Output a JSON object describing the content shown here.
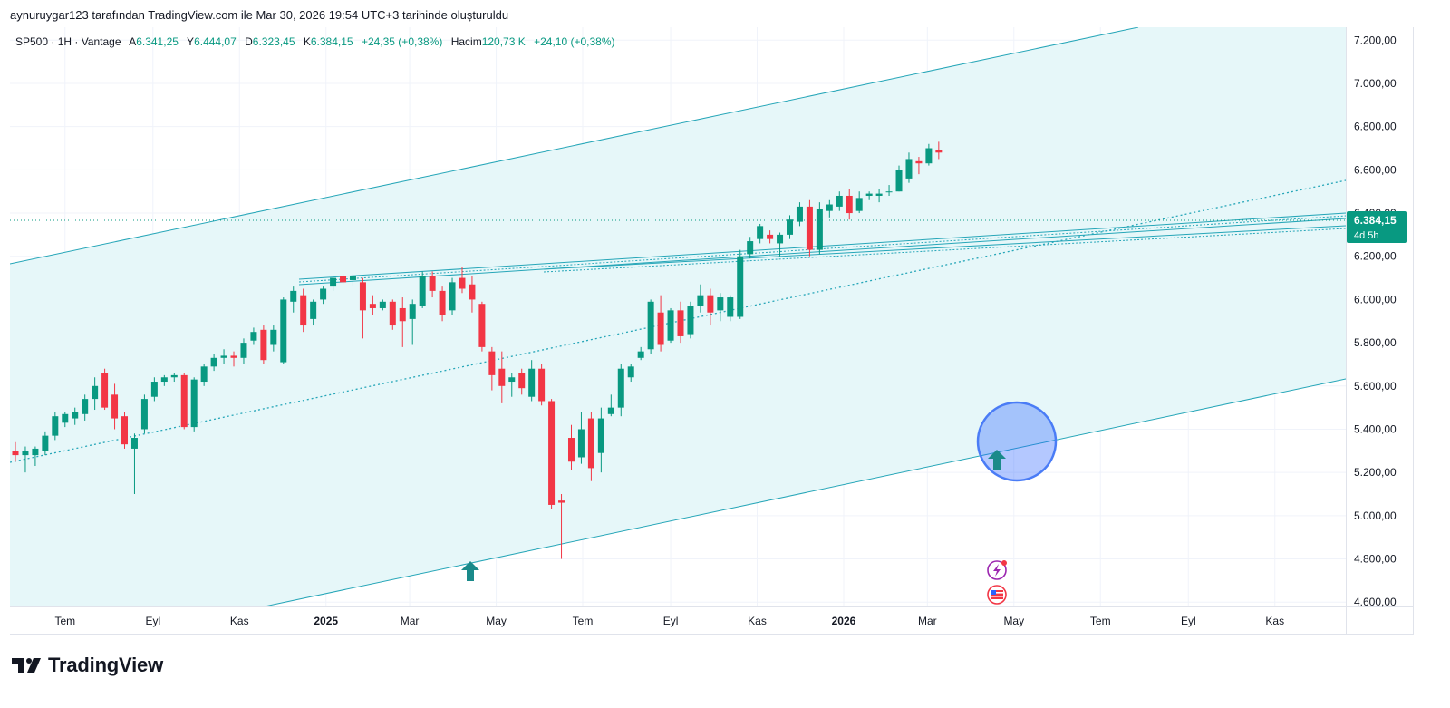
{
  "header": {
    "caption": "aynuruygar123 tarafından TradingView.com ile Mar 30, 2026 19:54 UTC+3 tarihinde oluşturuldu"
  },
  "legend": {
    "symbol": "SP500 · 1H · Vantage",
    "open_label": "A",
    "open_value": "6.341,25",
    "high_label": "Y",
    "high_value": "6.444,07",
    "low_label": "D",
    "low_value": "6.323,45",
    "close_label": "K",
    "close_value": "6.384,15",
    "change": "+24,35 (+0,38%)",
    "volume_label": "Hacim",
    "volume_value": "120,73 K",
    "volume_change": "+24,10 (+0,38%)"
  },
  "price_tag": {
    "value": "6.384,15",
    "countdown": "4d 5h"
  },
  "brand": {
    "name": "TradingView"
  },
  "colors": {
    "up": "#089981",
    "down": "#f23645",
    "channel": "#26a6b8",
    "fill": "#e6f7f9",
    "circle": "#2962ff"
  },
  "chart_data": {
    "type": "candlestick",
    "ylim": [
      4580,
      7260
    ],
    "y_ticks": [
      4600,
      4800,
      5000,
      5200,
      5400,
      5600,
      5800,
      6000,
      6200,
      6400,
      6600,
      6800,
      7000,
      7200
    ],
    "y_tick_labels": [
      "4.600,00",
      "4.800,00",
      "5.000,00",
      "5.200,00",
      "5.400,00",
      "5.600,00",
      "5.800,00",
      "6.000,00",
      "6.200,00",
      "6.400,00",
      "6.600,00",
      "6.800,00",
      "7.000,00",
      "7.200,00"
    ],
    "x_range": [
      "2024-05-27",
      "2026-12-21"
    ],
    "x_ticks": [
      {
        "date": "2024-07-01",
        "label": "Tem",
        "bold": false
      },
      {
        "date": "2024-09-01",
        "label": "Eyl",
        "bold": false
      },
      {
        "date": "2024-11-01",
        "label": "Kas",
        "bold": false
      },
      {
        "date": "2025-01-01",
        "label": "2025",
        "bold": true
      },
      {
        "date": "2025-03-01",
        "label": "Mar",
        "bold": false
      },
      {
        "date": "2025-05-01",
        "label": "May",
        "bold": false
      },
      {
        "date": "2025-07-01",
        "label": "Tem",
        "bold": false
      },
      {
        "date": "2025-09-01",
        "label": "Eyl",
        "bold": false
      },
      {
        "date": "2025-11-01",
        "label": "Kas",
        "bold": false
      },
      {
        "date": "2026-01-01",
        "label": "2026",
        "bold": true
      },
      {
        "date": "2026-03-01",
        "label": "Mar",
        "bold": false
      },
      {
        "date": "2026-05-01",
        "label": "May",
        "bold": false
      },
      {
        "date": "2026-07-01",
        "label": "Tem",
        "bold": false
      },
      {
        "date": "2026-09-01",
        "label": "Eyl",
        "bold": false
      },
      {
        "date": "2026-11-01",
        "label": "Kas",
        "bold": false
      }
    ],
    "candles": [
      {
        "d": "2024-05-27",
        "o": 5300,
        "h": 5340,
        "l": 5250,
        "c": 5280
      },
      {
        "d": "2024-06-03",
        "o": 5280,
        "h": 5320,
        "l": 5200,
        "c": 5300
      },
      {
        "d": "2024-06-10",
        "o": 5280,
        "h": 5320,
        "l": 5230,
        "c": 5310
      },
      {
        "d": "2024-06-17",
        "o": 5300,
        "h": 5390,
        "l": 5280,
        "c": 5370
      },
      {
        "d": "2024-06-24",
        "o": 5370,
        "h": 5480,
        "l": 5350,
        "c": 5460
      },
      {
        "d": "2024-07-01",
        "o": 5430,
        "h": 5480,
        "l": 5410,
        "c": 5470
      },
      {
        "d": "2024-07-08",
        "o": 5450,
        "h": 5500,
        "l": 5420,
        "c": 5480
      },
      {
        "d": "2024-07-15",
        "o": 5470,
        "h": 5560,
        "l": 5440,
        "c": 5540
      },
      {
        "d": "2024-07-22",
        "o": 5540,
        "h": 5640,
        "l": 5490,
        "c": 5600
      },
      {
        "d": "2024-07-29",
        "o": 5660,
        "h": 5680,
        "l": 5490,
        "c": 5500
      },
      {
        "d": "2024-08-05",
        "o": 5560,
        "h": 5610,
        "l": 5400,
        "c": 5450
      },
      {
        "d": "2024-08-12",
        "o": 5460,
        "h": 5480,
        "l": 5310,
        "c": 5330
      },
      {
        "d": "2024-08-19",
        "o": 5310,
        "h": 5380,
        "l": 5100,
        "c": 5360
      },
      {
        "d": "2024-08-26",
        "o": 5400,
        "h": 5560,
        "l": 5380,
        "c": 5540
      },
      {
        "d": "2024-09-02",
        "o": 5550,
        "h": 5640,
        "l": 5530,
        "c": 5620
      },
      {
        "d": "2024-09-09",
        "o": 5620,
        "h": 5650,
        "l": 5600,
        "c": 5640
      },
      {
        "d": "2024-09-16",
        "o": 5640,
        "h": 5660,
        "l": 5620,
        "c": 5650
      },
      {
        "d": "2024-09-23",
        "o": 5650,
        "h": 5660,
        "l": 5400,
        "c": 5410
      },
      {
        "d": "2024-09-30",
        "o": 5410,
        "h": 5640,
        "l": 5390,
        "c": 5630
      },
      {
        "d": "2024-10-07",
        "o": 5620,
        "h": 5700,
        "l": 5600,
        "c": 5690
      },
      {
        "d": "2024-10-14",
        "o": 5690,
        "h": 5750,
        "l": 5670,
        "c": 5730
      },
      {
        "d": "2024-10-21",
        "o": 5730,
        "h": 5770,
        "l": 5700,
        "c": 5740
      },
      {
        "d": "2024-10-28",
        "o": 5740,
        "h": 5760,
        "l": 5690,
        "c": 5730
      },
      {
        "d": "2024-11-04",
        "o": 5730,
        "h": 5820,
        "l": 5700,
        "c": 5800
      },
      {
        "d": "2024-11-11",
        "o": 5810,
        "h": 5870,
        "l": 5790,
        "c": 5850
      },
      {
        "d": "2024-11-18",
        "o": 5860,
        "h": 5880,
        "l": 5700,
        "c": 5720
      },
      {
        "d": "2024-11-25",
        "o": 5790,
        "h": 5880,
        "l": 5760,
        "c": 5860
      },
      {
        "d": "2024-12-02",
        "o": 5710,
        "h": 6010,
        "l": 5700,
        "c": 6000
      },
      {
        "d": "2024-12-09",
        "o": 5990,
        "h": 6060,
        "l": 5940,
        "c": 6040
      },
      {
        "d": "2024-12-16",
        "o": 6020,
        "h": 6050,
        "l": 5850,
        "c": 5880
      },
      {
        "d": "2024-12-23",
        "o": 5910,
        "h": 6000,
        "l": 5880,
        "c": 5990
      },
      {
        "d": "2024-12-30",
        "o": 6000,
        "h": 6060,
        "l": 5980,
        "c": 6050
      },
      {
        "d": "2025-01-06",
        "o": 6060,
        "h": 6100,
        "l": 6040,
        "c": 6100
      },
      {
        "d": "2025-01-13",
        "o": 6110,
        "h": 6120,
        "l": 6070,
        "c": 6080
      },
      {
        "d": "2025-01-20",
        "o": 6090,
        "h": 6120,
        "l": 6060,
        "c": 6110
      },
      {
        "d": "2025-01-27",
        "o": 6080,
        "h": 6100,
        "l": 5820,
        "c": 5950
      },
      {
        "d": "2025-02-03",
        "o": 5980,
        "h": 6020,
        "l": 5930,
        "c": 5960
      },
      {
        "d": "2025-02-10",
        "o": 5960,
        "h": 6000,
        "l": 5950,
        "c": 5990
      },
      {
        "d": "2025-02-17",
        "o": 5990,
        "h": 6000,
        "l": 5860,
        "c": 5880
      },
      {
        "d": "2025-02-24",
        "o": 5960,
        "h": 6010,
        "l": 5780,
        "c": 5900
      },
      {
        "d": "2025-03-03",
        "o": 5910,
        "h": 6000,
        "l": 5790,
        "c": 5980
      },
      {
        "d": "2025-03-10",
        "o": 5970,
        "h": 6130,
        "l": 5960,
        "c": 6110
      },
      {
        "d": "2025-03-17",
        "o": 6110,
        "h": 6130,
        "l": 6010,
        "c": 6040
      },
      {
        "d": "2025-03-24",
        "o": 6040,
        "h": 6060,
        "l": 5900,
        "c": 5930
      },
      {
        "d": "2025-03-31",
        "o": 5950,
        "h": 6100,
        "l": 5930,
        "c": 6080
      },
      {
        "d": "2025-04-07",
        "o": 6100,
        "h": 6150,
        "l": 6030,
        "c": 6050
      },
      {
        "d": "2025-04-14",
        "o": 6070,
        "h": 6110,
        "l": 5940,
        "c": 6000
      },
      {
        "d": "2025-04-21",
        "o": 5980,
        "h": 5990,
        "l": 5760,
        "c": 5780
      },
      {
        "d": "2025-04-28",
        "o": 5760,
        "h": 5780,
        "l": 5580,
        "c": 5650
      },
      {
        "d": "2025-05-05",
        "o": 5680,
        "h": 5760,
        "l": 5520,
        "c": 5600
      },
      {
        "d": "2025-05-12",
        "o": 5620,
        "h": 5660,
        "l": 5550,
        "c": 5640
      },
      {
        "d": "2025-05-19",
        "o": 5660,
        "h": 5680,
        "l": 5560,
        "c": 5590
      },
      {
        "d": "2025-05-26",
        "o": 5550,
        "h": 5720,
        "l": 5530,
        "c": 5680
      },
      {
        "d": "2025-06-02",
        "o": 5680,
        "h": 5700,
        "l": 5510,
        "c": 5530
      },
      {
        "d": "2025-06-09",
        "o": 5530,
        "h": 5540,
        "l": 5030,
        "c": 5050
      },
      {
        "d": "2025-06-16",
        "o": 5070,
        "h": 5100,
        "l": 4800,
        "c": 5060
      },
      {
        "d": "2025-06-23",
        "o": 5360,
        "h": 5420,
        "l": 5210,
        "c": 5250
      },
      {
        "d": "2025-06-30",
        "o": 5270,
        "h": 5480,
        "l": 5240,
        "c": 5400
      },
      {
        "d": "2025-07-07",
        "o": 5450,
        "h": 5480,
        "l": 5160,
        "c": 5220
      },
      {
        "d": "2025-07-14",
        "o": 5290,
        "h": 5500,
        "l": 5200,
        "c": 5450
      },
      {
        "d": "2025-07-21",
        "o": 5470,
        "h": 5560,
        "l": 5460,
        "c": 5500
      },
      {
        "d": "2025-07-28",
        "o": 5500,
        "h": 5700,
        "l": 5460,
        "c": 5680
      },
      {
        "d": "2025-08-04",
        "o": 5640,
        "h": 5700,
        "l": 5620,
        "c": 5690
      },
      {
        "d": "2025-08-11",
        "o": 5730,
        "h": 5780,
        "l": 5720,
        "c": 5760
      },
      {
        "d": "2025-08-18",
        "o": 5770,
        "h": 6000,
        "l": 5750,
        "c": 5990
      },
      {
        "d": "2025-08-25",
        "o": 5940,
        "h": 6020,
        "l": 5760,
        "c": 5790
      },
      {
        "d": "2025-09-01",
        "o": 5810,
        "h": 5960,
        "l": 5800,
        "c": 5950
      },
      {
        "d": "2025-09-08",
        "o": 5950,
        "h": 5990,
        "l": 5800,
        "c": 5830
      },
      {
        "d": "2025-09-15",
        "o": 5840,
        "h": 5990,
        "l": 5820,
        "c": 5970
      },
      {
        "d": "2025-09-22",
        "o": 5970,
        "h": 6070,
        "l": 5940,
        "c": 6020
      },
      {
        "d": "2025-09-29",
        "o": 6020,
        "h": 6050,
        "l": 5880,
        "c": 5940
      },
      {
        "d": "2025-10-06",
        "o": 5950,
        "h": 6030,
        "l": 5900,
        "c": 6010
      },
      {
        "d": "2025-10-13",
        "o": 5920,
        "h": 6020,
        "l": 5900,
        "c": 6010
      },
      {
        "d": "2025-10-20",
        "o": 5920,
        "h": 6230,
        "l": 5910,
        "c": 6200
      },
      {
        "d": "2025-10-27",
        "o": 6210,
        "h": 6290,
        "l": 6190,
        "c": 6270
      },
      {
        "d": "2025-11-03",
        "o": 6280,
        "h": 6350,
        "l": 6260,
        "c": 6340
      },
      {
        "d": "2025-11-10",
        "o": 6300,
        "h": 6320,
        "l": 6260,
        "c": 6280
      },
      {
        "d": "2025-11-17",
        "o": 6260,
        "h": 6310,
        "l": 6200,
        "c": 6300
      },
      {
        "d": "2025-11-24",
        "o": 6300,
        "h": 6390,
        "l": 6280,
        "c": 6370
      },
      {
        "d": "2025-12-01",
        "o": 6360,
        "h": 6450,
        "l": 6340,
        "c": 6430
      },
      {
        "d": "2025-12-08",
        "o": 6430,
        "h": 6460,
        "l": 6200,
        "c": 6230
      },
      {
        "d": "2025-12-15",
        "o": 6230,
        "h": 6450,
        "l": 6210,
        "c": 6420
      },
      {
        "d": "2025-12-22",
        "o": 6410,
        "h": 6460,
        "l": 6380,
        "c": 6440
      },
      {
        "d": "2025-12-29",
        "o": 6430,
        "h": 6500,
        "l": 6410,
        "c": 6480
      },
      {
        "d": "2026-01-05",
        "o": 6480,
        "h": 6510,
        "l": 6370,
        "c": 6400
      },
      {
        "d": "2026-01-12",
        "o": 6410,
        "h": 6500,
        "l": 6400,
        "c": 6470
      },
      {
        "d": "2026-01-19",
        "o": 6480,
        "h": 6500,
        "l": 6460,
        "c": 6490
      },
      {
        "d": "2026-01-26",
        "o": 6480,
        "h": 6510,
        "l": 6450,
        "c": 6490
      },
      {
        "d": "2026-02-02",
        "o": 6500,
        "h": 6530,
        "l": 6480,
        "c": 6500
      },
      {
        "d": "2026-02-09",
        "o": 6500,
        "h": 6620,
        "l": 6500,
        "c": 6600
      },
      {
        "d": "2026-02-16",
        "o": 6560,
        "h": 6680,
        "l": 6540,
        "c": 6650
      },
      {
        "d": "2026-02-23",
        "o": 6640,
        "h": 6660,
        "l": 6580,
        "c": 6630
      },
      {
        "d": "2026-03-02",
        "o": 6630,
        "h": 6720,
        "l": 6620,
        "c": 6700
      },
      {
        "d": "2026-03-09",
        "o": 6690,
        "h": 6730,
        "l": 6650,
        "c": 6680
      }
    ],
    "note": ""
  }
}
